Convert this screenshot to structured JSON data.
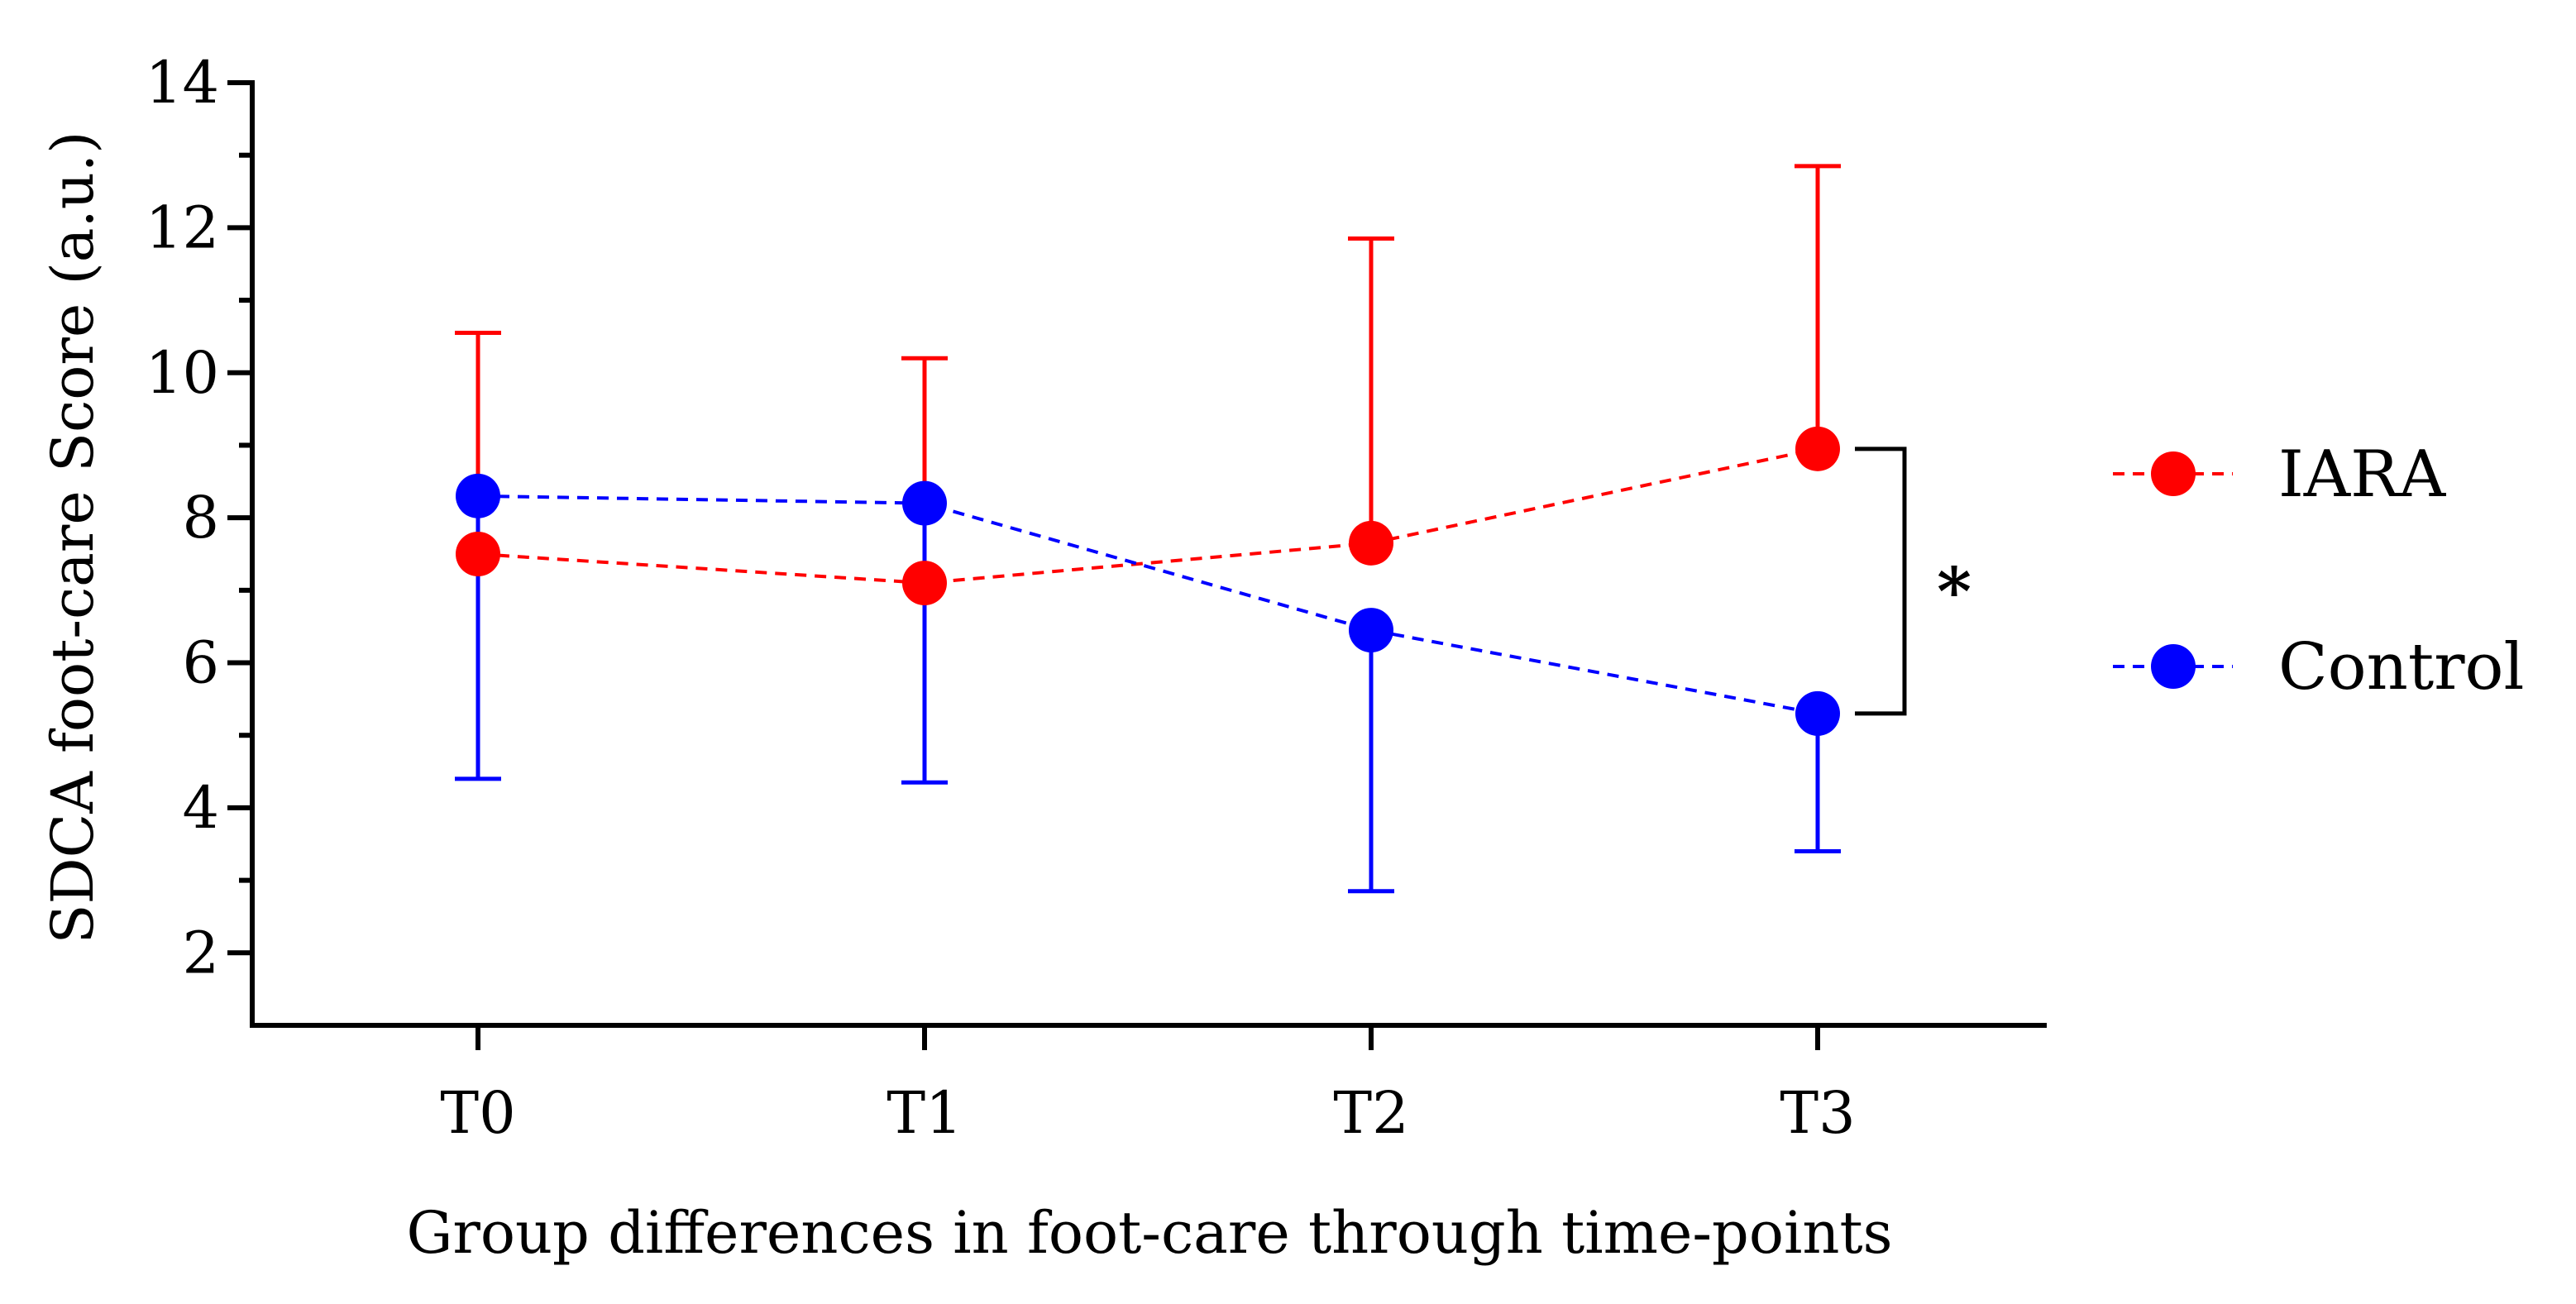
{
  "chart_data": {
    "type": "line",
    "title": "",
    "xlabel": "Group differences in foot-care through time-points",
    "ylabel": "SDCA foot-care Score (a.u.)",
    "categories": [
      "T0",
      "T1",
      "T2",
      "T3"
    ],
    "ylim": [
      1,
      14
    ],
    "yticks": [
      2,
      4,
      6,
      8,
      10,
      12,
      14
    ],
    "grid": false,
    "legend_position": "right",
    "series": [
      {
        "name": "IARA",
        "color": "#ff0000",
        "values": [
          7.5,
          7.1,
          7.65,
          8.95
        ],
        "error_upper": [
          10.55,
          10.2,
          11.85,
          12.85
        ],
        "error_direction": "up"
      },
      {
        "name": "Control",
        "color": "#0000ff",
        "values": [
          8.3,
          8.2,
          6.45,
          5.3
        ],
        "error_lower": [
          4.4,
          4.35,
          2.85,
          3.4
        ],
        "error_direction": "down"
      }
    ],
    "annotations": [
      {
        "text": "*",
        "category": "T3",
        "between": [
          "IARA",
          "Control"
        ]
      }
    ]
  }
}
